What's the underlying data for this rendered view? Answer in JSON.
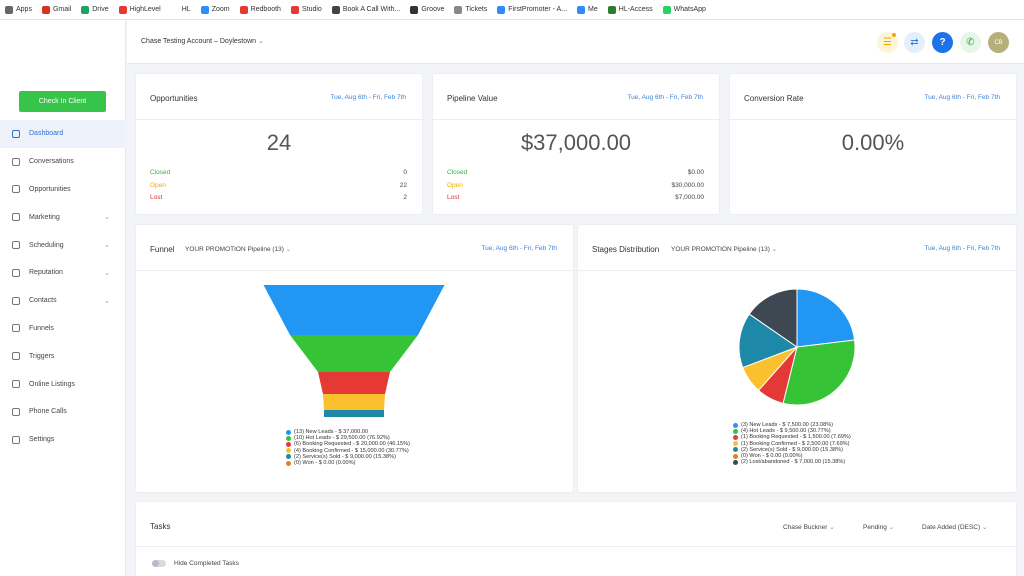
{
  "bookmarks": [
    {
      "label": "Apps",
      "color": "#666"
    },
    {
      "label": "Gmail",
      "color": "#d93025"
    },
    {
      "label": "Drive",
      "color": "#1fa463"
    },
    {
      "label": "HighLevel",
      "color": "#e53935"
    },
    {
      "label": "HL",
      "color": "#fff"
    },
    {
      "label": "Zoom",
      "color": "#2d8cff"
    },
    {
      "label": "Redbooth",
      "color": "#e53935"
    },
    {
      "label": "Studio",
      "color": "#e53935"
    },
    {
      "label": "Book A Call With...",
      "color": "#444"
    },
    {
      "label": "Groove",
      "color": "#333"
    },
    {
      "label": "Tickets",
      "color": "#888"
    },
    {
      "label": "FirstPromoter - A...",
      "color": "#2d8cff"
    },
    {
      "label": "Me",
      "color": "#2d8cff"
    },
    {
      "label": "HL-Access",
      "color": "#2e7d32"
    },
    {
      "label": "WhatsApp",
      "color": "#25d366"
    }
  ],
  "sidebar": {
    "check_in": "Check In Client",
    "items": [
      {
        "label": "Dashboard",
        "icon": "dashboard-icon",
        "active": true,
        "chev": false
      },
      {
        "label": "Conversations",
        "icon": "chat-icon",
        "chev": false
      },
      {
        "label": "Opportunities",
        "icon": "layers-icon",
        "chev": false
      },
      {
        "label": "Marketing",
        "icon": "mail-icon",
        "chev": true
      },
      {
        "label": "Scheduling",
        "icon": "calendar-icon",
        "chev": true
      },
      {
        "label": "Reputation",
        "icon": "star-icon",
        "chev": true
      },
      {
        "label": "Contacts",
        "icon": "person-icon",
        "chev": true
      },
      {
        "label": "Funnels",
        "icon": "filter-icon",
        "chev": false
      },
      {
        "label": "Triggers",
        "icon": "trigger-icon",
        "chev": false
      },
      {
        "label": "Online Listings",
        "icon": "pulse-icon",
        "chev": false
      },
      {
        "label": "Phone Calls",
        "icon": "phone-icon",
        "chev": false
      },
      {
        "label": "Settings",
        "icon": "gear-icon",
        "chev": false
      }
    ]
  },
  "header": {
    "account": "Chase Testing Account – Doylestown",
    "avatar": "CB"
  },
  "cards": [
    {
      "title": "Opportunities",
      "date": "Tue, Aug 6th - Fri, Feb 7th",
      "value": "24",
      "rows": [
        {
          "label": "Closed",
          "value": "0",
          "color": "#37b24d"
        },
        {
          "label": "Open",
          "value": "22",
          "color": "#f2a900"
        },
        {
          "label": "Lost",
          "value": "2",
          "color": "#e03131"
        }
      ]
    },
    {
      "title": "Pipeline Value",
      "date": "Tue, Aug 6th - Fri, Feb 7th",
      "value": "$37,000.00",
      "rows": [
        {
          "label": "Closed",
          "value": "$0.00",
          "color": "#37b24d"
        },
        {
          "label": "Open",
          "value": "$30,000.00",
          "color": "#f2a900"
        },
        {
          "label": "Lost",
          "value": "$7,000.00",
          "color": "#e03131"
        }
      ]
    },
    {
      "title": "Conversion Rate",
      "date": "Tue, Aug 6th - Fri, Feb 7th",
      "value": "0.00%",
      "rows": []
    }
  ],
  "funnel": {
    "title": "Funnel",
    "pipeline": "YOUR PROMOTION Pipeline (13)",
    "date": "Tue, Aug 6th - Fri, Feb 7th",
    "legend": [
      {
        "label": "(13) New Leads - $ 37,000.00",
        "color": "#2196f3"
      },
      {
        "label": "(10) Hot Leads - $ 29,500.00 (76.92%)",
        "color": "#36c336"
      },
      {
        "label": "(6) Booking Requested - $ 20,000.00 (46.15%)",
        "color": "#e53935"
      },
      {
        "label": "(4) Booking Confirmed - $ 15,000.00 (30.77%)",
        "color": "#fbc02d"
      },
      {
        "label": "(2) Service(s) Sold - $ 9,000.00 (15.38%)",
        "color": "#1e88a8"
      },
      {
        "label": "(0) Won - $ 0.00 (0.00%)",
        "color": "#e67e22"
      }
    ]
  },
  "stages": {
    "title": "Stages Distribution",
    "pipeline": "YOUR PROMOTION Pipeline (13)",
    "date": "Tue, Aug 6th - Fri, Feb 7th",
    "legend": [
      {
        "label": "(3) New Leads - $ 7,500.00 (23.08%)",
        "color": "#2196f3"
      },
      {
        "label": "(4) Hot Leads - $ 9,500.00 (30.77%)",
        "color": "#36c336"
      },
      {
        "label": "(1) Booking Requested - $ 1,500.00 (7.69%)",
        "color": "#e53935"
      },
      {
        "label": "(1) Booking Confirmed - $ 2,500.00 (7.69%)",
        "color": "#fbc02d"
      },
      {
        "label": "(2) Service(s) Sold - $ 9,000.00 (15.38%)",
        "color": "#1e88a8"
      },
      {
        "label": "(0) Won - $ 0.00 (0.00%)",
        "color": "#e67e22"
      },
      {
        "label": "(2) Lost/abandoned - $ 7,000.00 (15.38%)",
        "color": "#3d4852"
      }
    ]
  },
  "chart_data": [
    {
      "type": "bar",
      "subtype": "funnel",
      "categories": [
        "New Leads",
        "Hot Leads",
        "Booking Requested",
        "Booking Confirmed",
        "Service(s) Sold",
        "Won"
      ],
      "values": [
        13,
        10,
        6,
        4,
        2,
        0
      ],
      "colors": [
        "#2196f3",
        "#36c336",
        "#e53935",
        "#fbc02d",
        "#1e88a8",
        "#e67e22"
      ]
    },
    {
      "type": "pie",
      "categories": [
        "New Leads",
        "Hot Leads",
        "Booking Requested",
        "Booking Confirmed",
        "Service(s) Sold",
        "Won",
        "Lost/abandoned"
      ],
      "values": [
        23.08,
        30.77,
        7.69,
        7.69,
        15.38,
        0,
        15.38
      ],
      "colors": [
        "#2196f3",
        "#36c336",
        "#e53935",
        "#fbc02d",
        "#1e88a8",
        "#e67e22",
        "#3d4852"
      ]
    }
  ],
  "tasks": {
    "title": "Tasks",
    "user": "Chase Buckner",
    "status": "Pending",
    "sort": "Date Added (DESC)",
    "hide_completed": "Hide Completed Tasks"
  }
}
